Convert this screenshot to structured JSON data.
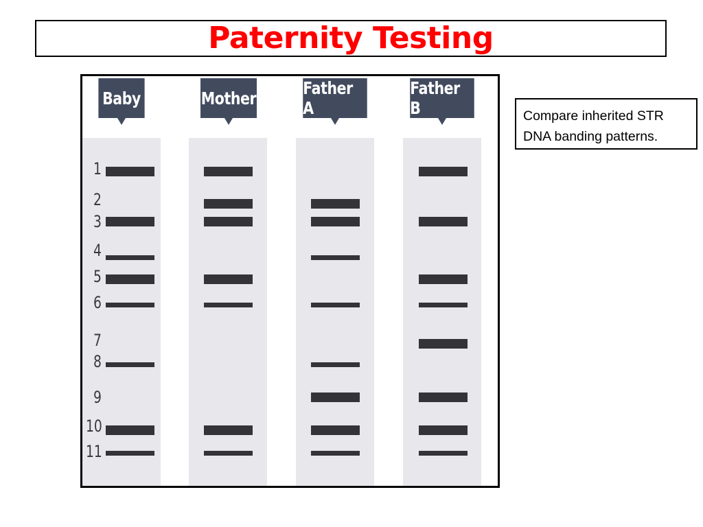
{
  "title": "Paternity Testing",
  "note": "Compare inherited STR DNA banding patterns.",
  "lanes": [
    {
      "label": "Baby",
      "bands": [
        1,
        3,
        4,
        5,
        6,
        8,
        10,
        11
      ]
    },
    {
      "label": "Mother",
      "bands": [
        1,
        2,
        3,
        5,
        6,
        10,
        11
      ]
    },
    {
      "label": "Father A",
      "bands": [
        2,
        3,
        4,
        6,
        8,
        9,
        10,
        11
      ]
    },
    {
      "label": "Father B",
      "bands": [
        1,
        3,
        5,
        6,
        7,
        9,
        10,
        11
      ]
    }
  ],
  "rows": [
    {
      "label": "1",
      "thickness": "thick"
    },
    {
      "label": "2",
      "thickness": "thick"
    },
    {
      "label": "3",
      "thickness": "thick"
    },
    {
      "label": "4",
      "thickness": "thin"
    },
    {
      "label": "5",
      "thickness": "thick"
    },
    {
      "label": "6",
      "thickness": "thin"
    },
    {
      "label": "7",
      "thickness": "thick"
    },
    {
      "label": "8",
      "thickness": "thin"
    },
    {
      "label": "9",
      "thickness": "thick"
    },
    {
      "label": "10",
      "thickness": "thick"
    },
    {
      "label": "11",
      "thickness": "thin"
    }
  ],
  "colors": {
    "title": "#ff0000",
    "lane_header": "#424b5e",
    "lane_background": "#e8e7ec",
    "band": "#343438"
  }
}
